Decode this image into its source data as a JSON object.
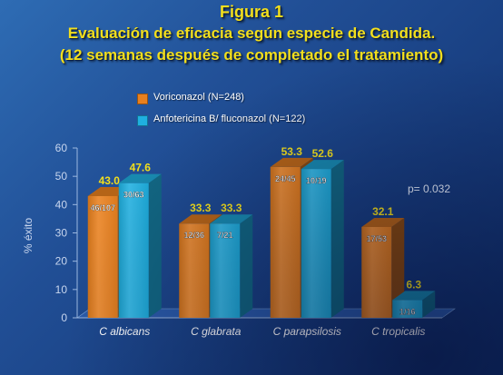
{
  "title": {
    "line1": "Figura 1",
    "line2": "Evaluación de eficacia según especie de Candida.",
    "line3": "(12 semanas después de completado el tratamiento)"
  },
  "colors": {
    "title": "#f3df1c",
    "series_voriconazol": "#e8801e",
    "series_anfotericina": "#1fb0e0",
    "value_label": "#f3df1c",
    "background": "#1f4d93"
  },
  "chart_data": {
    "type": "bar",
    "categories": [
      "C albicans",
      "C glabrata",
      "C parapsilosis",
      "C tropicalis"
    ],
    "series": [
      {
        "name": "Voriconazol (N=248)",
        "values": [
          43.0,
          33.3,
          53.3,
          32.1
        ],
        "value_labels": [
          "43.0",
          "33.3",
          "53.3",
          "32.1"
        ],
        "ratios": [
          "46/107",
          "12/36",
          "24/45",
          "17/53"
        ]
      },
      {
        "name": "Anfotericina B/ fluconazol (N=122)",
        "values": [
          47.6,
          33.3,
          52.6,
          6.3
        ],
        "value_labels": [
          "47.6",
          "33.3",
          "52.6",
          "6.3"
        ],
        "ratios": [
          "30/63",
          "7/21",
          "10/19",
          "1/16"
        ]
      }
    ],
    "ylabel": "% éxito",
    "xlabel": "",
    "ylim": [
      0,
      60
    ],
    "yticks": [
      0,
      10,
      20,
      30,
      40,
      50,
      60
    ],
    "grid": false,
    "legend_position": "top",
    "annotation": "p= 0.032"
  }
}
